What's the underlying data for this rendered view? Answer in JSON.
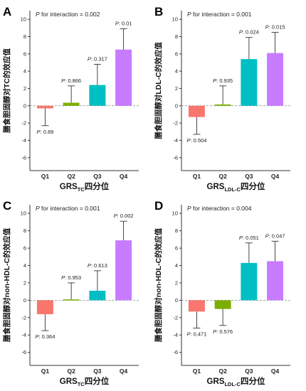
{
  "chart_data": [
    {
      "type": "bar",
      "panel_letter": "A",
      "interaction_label": "P",
      "interaction_text": " for interaction = 0.002",
      "ylabel": "膳食胆固醇对TC的效应值",
      "xlabel_main": "GRS",
      "xlabel_sub": "TC",
      "xlabel_suffix": "四分位",
      "categories": [
        "Q1",
        "Q2",
        "Q3",
        "Q4"
      ],
      "values": [
        -0.3,
        0.35,
        2.4,
        6.5
      ],
      "error_upper": [
        -0.3,
        2.3,
        4.8,
        8.9
      ],
      "error_lower": [
        -2.3,
        0.35,
        2.4,
        6.5
      ],
      "p_prefix": "P",
      "p_values": [
        ": 0.89",
        ": 0.866",
        ": 0.317",
        ": 0.01"
      ],
      "p_above": [
        false,
        true,
        true,
        true
      ],
      "colors": [
        "#f8766d",
        "#7cae00",
        "#00bfc4",
        "#c77cff"
      ],
      "ylim": [
        -7.5,
        11
      ],
      "yticks": [
        -6,
        -4,
        -2,
        0,
        2,
        4,
        6,
        8,
        10
      ]
    },
    {
      "type": "bar",
      "panel_letter": "B",
      "interaction_label": "P",
      "interaction_text": " for interaction = 0.001",
      "ylabel": "膳食胆固醇对LDL-C的效应值",
      "xlabel_main": "GRS",
      "xlabel_sub": "LDL-C",
      "xlabel_suffix": "四分位",
      "categories": [
        "Q1",
        "Q2",
        "Q3",
        "Q4"
      ],
      "values": [
        -1.3,
        0.15,
        5.4,
        6.1
      ],
      "error_upper": [
        -1.3,
        2.3,
        7.9,
        8.5
      ],
      "error_lower": [
        -3.3,
        0.15,
        5.4,
        6.1
      ],
      "p_prefix": "P",
      "p_values": [
        ": 0.504",
        ": 0.935",
        ": 0.024",
        ": 0.015"
      ],
      "p_above": [
        false,
        true,
        true,
        true
      ],
      "colors": [
        "#f8766d",
        "#7cae00",
        "#00bfc4",
        "#c77cff"
      ],
      "ylim": [
        -7.5,
        11
      ],
      "yticks": [
        -6,
        -4,
        -2,
        0,
        2,
        4,
        6,
        8,
        10
      ]
    },
    {
      "type": "bar",
      "panel_letter": "C",
      "interaction_label": "P",
      "interaction_text": " for interaction = 0.001",
      "ylabel": "膳食胆固醇对non-HDL-C的效应值",
      "xlabel_main": "GRS",
      "xlabel_sub": "TC",
      "xlabel_suffix": "四分位",
      "categories": [
        "Q1",
        "Q2",
        "Q3",
        "Q4"
      ],
      "values": [
        -1.6,
        0.1,
        1.1,
        6.9
      ],
      "error_upper": [
        -1.6,
        2.0,
        3.4,
        9.1
      ],
      "error_lower": [
        -3.5,
        0.1,
        1.1,
        6.9
      ],
      "p_prefix": "P",
      "p_values": [
        ": 0.364",
        ": 0.953",
        ": 0.613",
        ": 0.002"
      ],
      "p_above": [
        false,
        true,
        true,
        true
      ],
      "colors": [
        "#f8766d",
        "#7cae00",
        "#00bfc4",
        "#c77cff"
      ],
      "ylim": [
        -7.5,
        11
      ],
      "yticks": [
        -6,
        -4,
        -2,
        0,
        2,
        4,
        6,
        8,
        10
      ]
    },
    {
      "type": "bar",
      "panel_letter": "D",
      "interaction_label": "P",
      "interaction_text": " for interaction = 0.004",
      "ylabel": "膳食胆固醇对non-HDL-C的效应值",
      "xlabel_main": "GRS",
      "xlabel_sub": "LDL-C",
      "xlabel_suffix": "四分位",
      "categories": [
        "Q1",
        "Q2",
        "Q3",
        "Q4"
      ],
      "values": [
        -1.3,
        -1.0,
        4.3,
        4.5
      ],
      "error_upper": [
        -1.3,
        -1.0,
        6.6,
        6.8
      ],
      "error_lower": [
        -3.2,
        -2.9,
        4.3,
        4.5
      ],
      "p_prefix": "P",
      "p_values": [
        ": 0.471",
        ": 0.576",
        ": 0.051",
        ": 0.047"
      ],
      "p_above": [
        false,
        false,
        true,
        true
      ],
      "colors": [
        "#f8766d",
        "#7cae00",
        "#00bfc4",
        "#c77cff"
      ],
      "ylim": [
        -7.5,
        11
      ],
      "yticks": [
        -6,
        -4,
        -2,
        0,
        2,
        4,
        6,
        8,
        10
      ]
    }
  ]
}
